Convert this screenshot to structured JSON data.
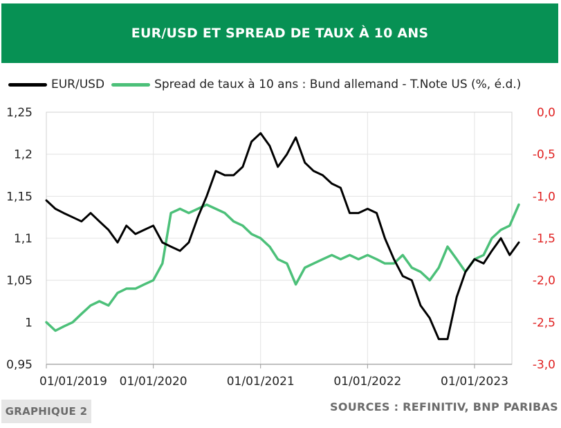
{
  "header": {
    "title": "EUR/USD ET SPREAD DE TAUX À 10 ANS"
  },
  "footer": {
    "badge": "GRAPHIQUE 2",
    "sources": "SOURCES : REFINITIV, BNP PARIBAS"
  },
  "chart_data": {
    "type": "line",
    "legend_position": "top",
    "grid": true,
    "x_ticks": [
      "01/01/2019",
      "01/01/2020",
      "01/01/2021",
      "01/01/2022",
      "01/01/2023"
    ],
    "y_left": {
      "lim": [
        0.95,
        1.25
      ],
      "ticks": [
        "0,95",
        "1",
        "1,05",
        "1,1",
        "1,15",
        "1,2",
        "1,25"
      ],
      "color": "#222222"
    },
    "y_right": {
      "lim": [
        -3.0,
        0.0
      ],
      "ticks": [
        "-3,0",
        "-2,5",
        "-2,0",
        "-1,5",
        "-1,0",
        "-0,5",
        "0,0"
      ],
      "color": "#e02020"
    },
    "series": [
      {
        "name": "EUR/USD",
        "axis": "left",
        "color": "#000000",
        "x": [
          "2019-01-01",
          "2019-02-01",
          "2019-03-01",
          "2019-04-01",
          "2019-05-01",
          "2019-06-01",
          "2019-07-01",
          "2019-08-01",
          "2019-09-01",
          "2019-10-01",
          "2019-11-01",
          "2019-12-01",
          "2020-01-01",
          "2020-02-01",
          "2020-03-01",
          "2020-04-01",
          "2020-05-01",
          "2020-06-01",
          "2020-07-01",
          "2020-08-01",
          "2020-09-01",
          "2020-10-01",
          "2020-11-01",
          "2020-12-01",
          "2021-01-01",
          "2021-02-01",
          "2021-03-01",
          "2021-04-01",
          "2021-05-01",
          "2021-06-01",
          "2021-07-01",
          "2021-08-01",
          "2021-09-01",
          "2021-10-01",
          "2021-11-01",
          "2021-12-01",
          "2022-01-01",
          "2022-02-01",
          "2022-03-01",
          "2022-04-01",
          "2022-05-01",
          "2022-06-01",
          "2022-07-01",
          "2022-08-01",
          "2022-09-01",
          "2022-10-01",
          "2022-11-01",
          "2022-12-01",
          "2023-01-01",
          "2023-02-01",
          "2023-03-01",
          "2023-04-01",
          "2023-05-01",
          "2023-06-01"
        ],
        "y": [
          1.145,
          1.135,
          1.13,
          1.125,
          1.12,
          1.13,
          1.12,
          1.11,
          1.095,
          1.115,
          1.105,
          1.11,
          1.115,
          1.095,
          1.09,
          1.085,
          1.095,
          1.125,
          1.15,
          1.18,
          1.175,
          1.175,
          1.185,
          1.215,
          1.225,
          1.21,
          1.185,
          1.2,
          1.22,
          1.19,
          1.18,
          1.175,
          1.165,
          1.16,
          1.13,
          1.13,
          1.135,
          1.13,
          1.1,
          1.075,
          1.055,
          1.05,
          1.02,
          1.005,
          0.98,
          0.98,
          1.03,
          1.06,
          1.075,
          1.07,
          1.085,
          1.1,
          1.08,
          1.095
        ]
      },
      {
        "name": "Spread de taux à 10 ans : Bund allemand - T.Note US (%, é.d.)",
        "axis": "right",
        "color": "#4cc079",
        "x": [
          "2019-01-01",
          "2019-02-01",
          "2019-03-01",
          "2019-04-01",
          "2019-05-01",
          "2019-06-01",
          "2019-07-01",
          "2019-08-01",
          "2019-09-01",
          "2019-10-01",
          "2019-11-01",
          "2019-12-01",
          "2020-01-01",
          "2020-02-01",
          "2020-03-01",
          "2020-04-01",
          "2020-05-01",
          "2020-06-01",
          "2020-07-01",
          "2020-08-01",
          "2020-09-01",
          "2020-10-01",
          "2020-11-01",
          "2020-12-01",
          "2021-01-01",
          "2021-02-01",
          "2021-03-01",
          "2021-04-01",
          "2021-05-01",
          "2021-06-01",
          "2021-07-01",
          "2021-08-01",
          "2021-09-01",
          "2021-10-01",
          "2021-11-01",
          "2021-12-01",
          "2022-01-01",
          "2022-02-01",
          "2022-03-01",
          "2022-04-01",
          "2022-05-01",
          "2022-06-01",
          "2022-07-01",
          "2022-08-01",
          "2022-09-01",
          "2022-10-01",
          "2022-11-01",
          "2022-12-01",
          "2023-01-01",
          "2023-02-01",
          "2023-03-01",
          "2023-04-01",
          "2023-05-01",
          "2023-06-01"
        ],
        "y": [
          -2.5,
          -2.6,
          -2.55,
          -2.5,
          -2.4,
          -2.3,
          -2.25,
          -2.3,
          -2.15,
          -2.1,
          -2.1,
          -2.05,
          -2.0,
          -1.8,
          -1.2,
          -1.15,
          -1.2,
          -1.15,
          -1.1,
          -1.15,
          -1.2,
          -1.3,
          -1.35,
          -1.45,
          -1.5,
          -1.6,
          -1.75,
          -1.8,
          -2.05,
          -1.85,
          -1.8,
          -1.75,
          -1.7,
          -1.75,
          -1.7,
          -1.75,
          -1.7,
          -1.75,
          -1.8,
          -1.8,
          -1.7,
          -1.85,
          -1.9,
          -2.0,
          -1.85,
          -1.6,
          -1.75,
          -1.9,
          -1.75,
          -1.7,
          -1.5,
          -1.4,
          -1.35,
          -1.1
        ]
      }
    ]
  }
}
